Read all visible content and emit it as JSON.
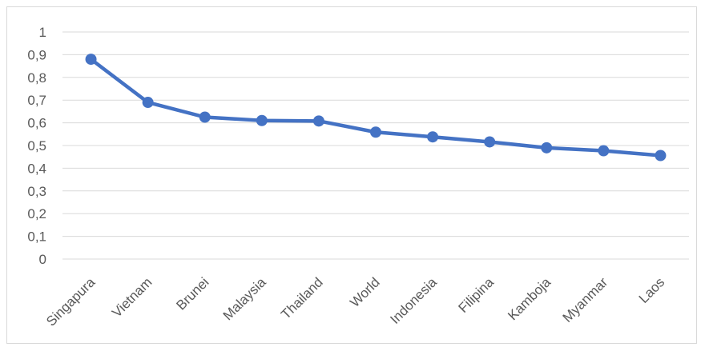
{
  "chart_data": {
    "type": "line",
    "categories": [
      "Singapura",
      "Vietnam",
      "Brunei",
      "Malaysia",
      "Thailand",
      "World",
      "Indonesia",
      "Filipina",
      "Kamboja",
      "Myanmar",
      "Laos"
    ],
    "series": [
      {
        "values": [
          0.88,
          0.69,
          0.625,
          0.61,
          0.608,
          0.559,
          0.538,
          0.516,
          0.49,
          0.477,
          0.456
        ]
      }
    ],
    "y_ticks": [
      "0",
      "0,1",
      "0,2",
      "0,3",
      "0,4",
      "0,5",
      "0,6",
      "0,7",
      "0,8",
      "0,9",
      "1"
    ],
    "ylim": [
      0,
      1
    ],
    "grid": true,
    "legend": "none",
    "title": "",
    "xlabel": "",
    "ylabel": "",
    "colors": {
      "line": "#4472c4",
      "grid": "#d9d9d9",
      "text": "#595959",
      "border": "#d9d9d9"
    }
  }
}
